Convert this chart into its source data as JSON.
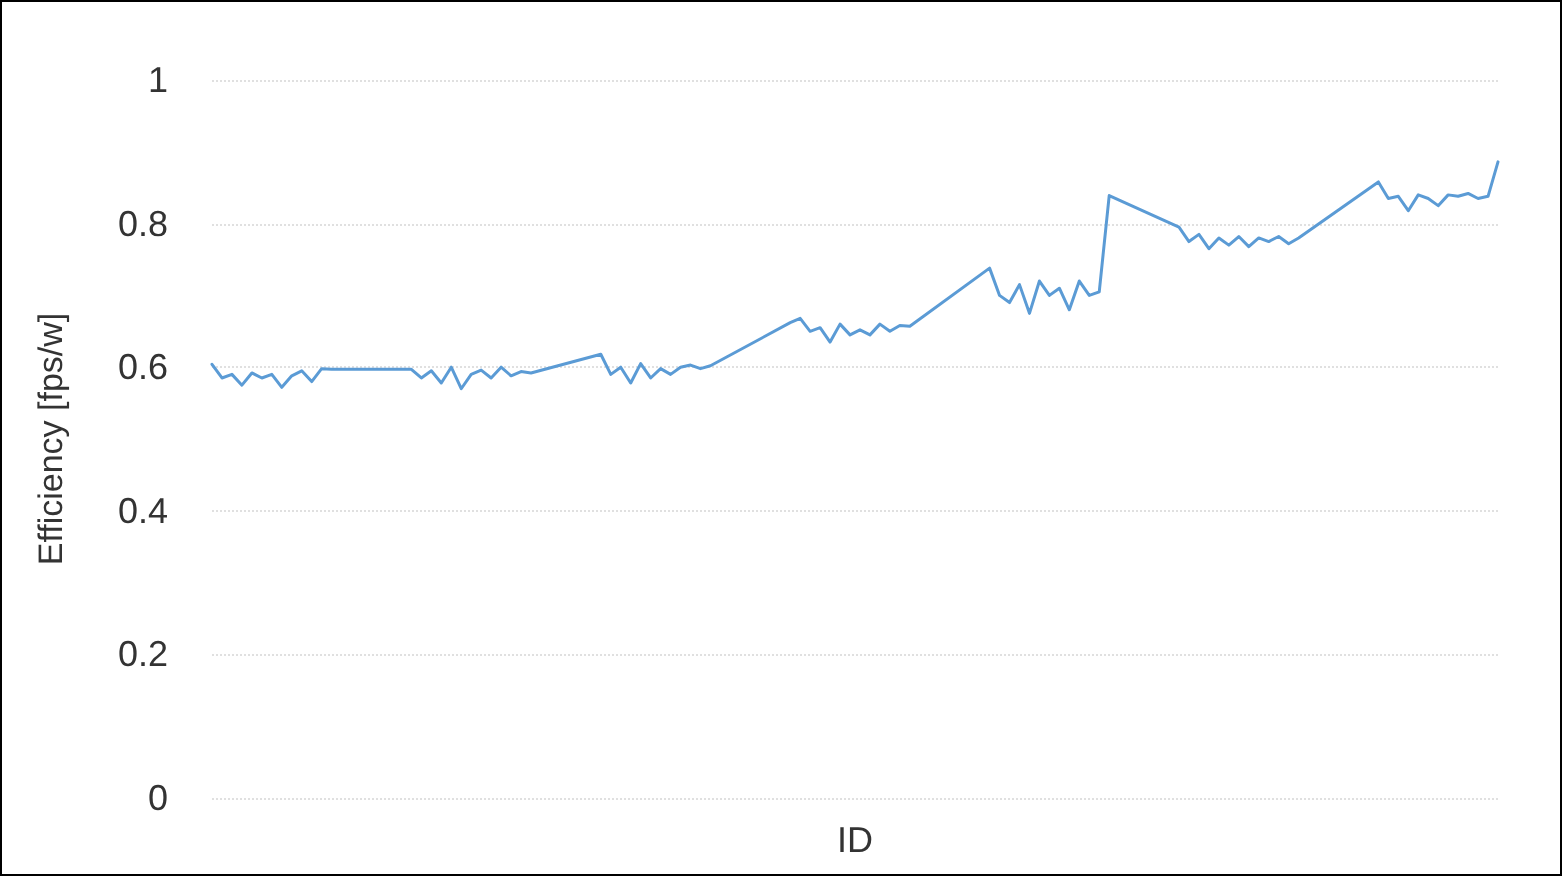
{
  "chart_data": {
    "type": "line",
    "xlabel": "ID",
    "ylabel": "Efficiency [fps/w]",
    "categories": [
      null,
      null,
      null,
      null,
      null,
      null,
      null,
      null,
      null,
      null,
      null,
      null,
      null,
      null,
      null,
      null,
      null,
      null,
      null,
      null,
      null,
      null,
      null,
      null,
      null,
      null,
      null,
      null,
      null,
      null,
      null,
      null,
      null,
      null,
      null,
      null,
      null,
      null,
      null,
      null,
      null,
      null,
      null,
      null,
      null,
      null,
      null,
      null,
      null,
      null,
      null,
      null,
      null,
      null,
      null,
      null,
      null,
      null,
      null,
      null,
      null,
      null,
      null,
      null,
      null,
      null,
      null,
      null,
      null,
      null,
      null,
      null,
      null,
      null,
      null,
      null,
      null,
      null,
      null,
      null,
      null,
      null,
      null,
      null,
      null,
      null,
      null,
      null,
      null,
      null,
      null,
      null,
      null,
      null,
      null,
      null,
      null,
      null,
      null,
      null,
      null,
      null,
      null,
      null,
      null,
      null,
      null,
      null,
      null,
      null,
      null,
      null,
      null,
      null,
      null,
      null,
      null,
      null,
      null,
      null,
      null,
      null,
      null,
      null,
      null,
      null,
      null,
      null,
      null,
      null
    ],
    "series": [
      {
        "color": "#5b9bd5",
        "values": [
          0.604,
          0.585,
          0.59,
          0.575,
          0.592,
          0.585,
          0.59,
          0.572,
          0.588,
          0.595,
          0.58,
          0.598,
          0.597,
          null,
          null,
          null,
          null,
          null,
          null,
          null,
          0.597,
          0.585,
          0.595,
          0.578,
          0.6,
          0.57,
          0.59,
          0.596,
          0.585,
          0.6,
          0.588,
          0.594,
          0.592,
          null,
          null,
          null,
          null,
          null,
          null,
          0.618,
          0.59,
          0.6,
          0.578,
          0.605,
          0.585,
          0.598,
          0.59,
          0.6,
          0.603,
          0.598,
          0.602,
          null,
          null,
          null,
          null,
          null,
          null,
          null,
          0.662,
          0.668,
          0.65,
          0.655,
          0.635,
          0.66,
          0.645,
          0.652,
          0.645,
          0.66,
          0.65,
          0.658,
          0.657,
          null,
          null,
          null,
          null,
          null,
          null,
          null,
          0.738,
          0.7,
          0.69,
          0.715,
          0.675,
          0.72,
          0.7,
          0.71,
          0.68,
          0.72,
          0.7,
          0.705,
          0.839,
          null,
          null,
          null,
          null,
          null,
          null,
          0.795,
          0.775,
          0.785,
          0.765,
          0.78,
          0.77,
          0.782,
          0.768,
          0.78,
          0.775,
          0.782,
          0.772,
          0.78,
          null,
          null,
          null,
          null,
          null,
          null,
          null,
          0.858,
          0.835,
          0.838,
          0.818,
          0.84,
          0.835,
          0.825,
          0.84,
          0.838,
          0.842,
          0.835,
          0.838,
          0.886
        ]
      }
    ],
    "ylim": [
      0,
      1
    ],
    "yticks": [
      0,
      0.2,
      0.4,
      0.6,
      0.8,
      1
    ],
    "grid": "y",
    "tick_labels": "y",
    "line_style": "solid"
  }
}
